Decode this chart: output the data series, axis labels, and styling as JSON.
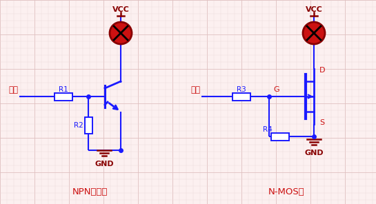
{
  "bg_color": "#fcf0f0",
  "grid_minor_color": "#edd8d8",
  "grid_major_color": "#dfc0c0",
  "line_color": "#1a1aff",
  "red_color": "#cc1111",
  "dark_red": "#880000",
  "lamp_fill": "#cc1111",
  "npn_label": "NPN三极管",
  "nmos_label": "N-MOS管",
  "vcc_label": "VCC",
  "gnd_label": "GND",
  "input_label": "输入",
  "r1_label": "R1",
  "r2_label": "R2",
  "r3_label": "R3",
  "r4_label": "R4",
  "d_label": "D",
  "g_label": "G",
  "s_label": "S",
  "figw": 5.45,
  "figh": 2.96,
  "dpi": 100
}
